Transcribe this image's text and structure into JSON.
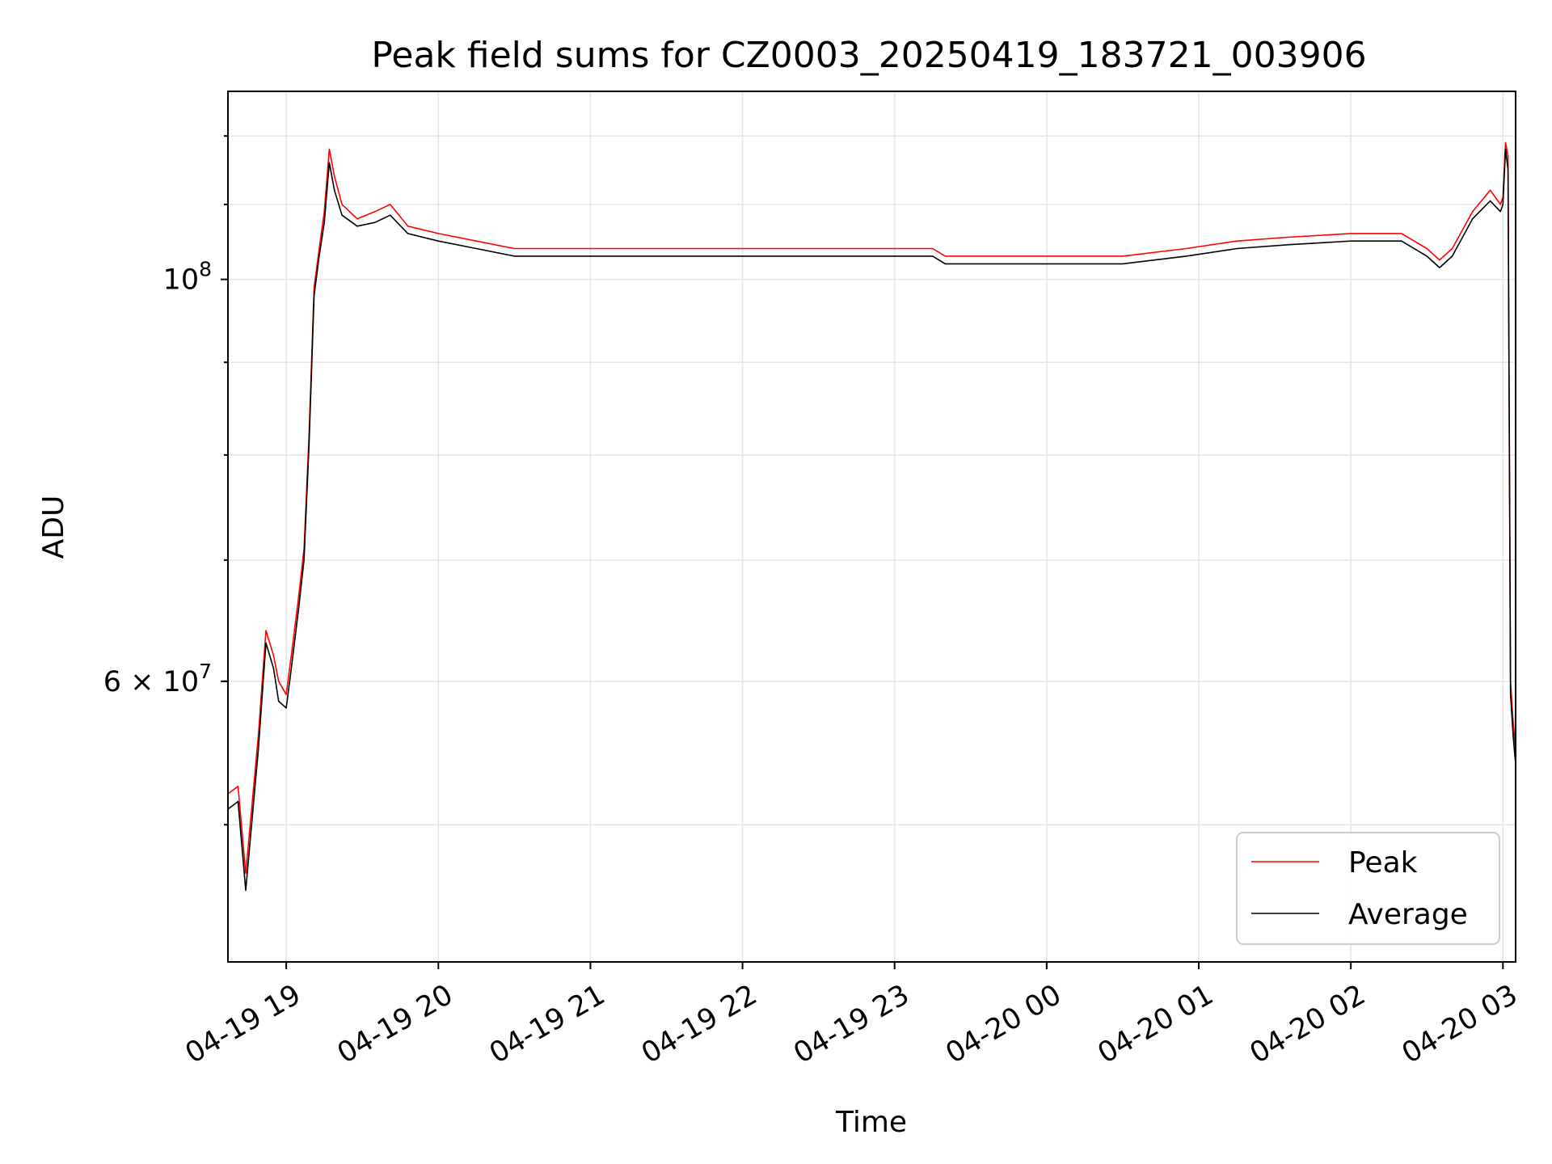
{
  "chart_data": {
    "type": "line",
    "title": "Peak field sums for CZ0003_20250419_183721_003906",
    "xlabel": "Time",
    "ylabel": "ADU",
    "y_scale": "log",
    "y_tick_labels": [
      {
        "value": 100000000,
        "label": "10",
        "exp": "8"
      },
      {
        "value": 60000000,
        "label": "6 × 10",
        "exp": "7"
      }
    ],
    "x_ticks": [
      {
        "t": "2025-04-19 19:00",
        "label": "04-19 19"
      },
      {
        "t": "2025-04-19 20:00",
        "label": "04-19 20"
      },
      {
        "t": "2025-04-19 21:00",
        "label": "04-19 21"
      },
      {
        "t": "2025-04-19 22:00",
        "label": "04-19 22"
      },
      {
        "t": "2025-04-19 23:00",
        "label": "04-19 23"
      },
      {
        "t": "2025-04-20 00:00",
        "label": "04-20 00"
      },
      {
        "t": "2025-04-20 01:00",
        "label": "04-20 01"
      },
      {
        "t": "2025-04-20 02:00",
        "label": "04-20 02"
      },
      {
        "t": "2025-04-20 03:00",
        "label": "04-20 03"
      }
    ],
    "xlim": [
      "2025-04-19 18:37",
      "2025-04-20 03:05"
    ],
    "ylim": [
      42000000,
      127000000
    ],
    "grid": true,
    "legend_position": "bottom-right",
    "series": [
      {
        "name": "Peak",
        "color": "#ff0000",
        "points": [
          [
            "2025-04-19 18:37",
            52000000
          ],
          [
            "2025-04-19 18:41",
            52500000
          ],
          [
            "2025-04-19 18:44",
            47000000
          ],
          [
            "2025-04-19 18:49",
            56000000
          ],
          [
            "2025-04-19 18:52",
            64000000
          ],
          [
            "2025-04-19 18:55",
            62000000
          ],
          [
            "2025-04-19 18:57",
            60000000
          ],
          [
            "2025-04-19 19:00",
            59000000
          ],
          [
            "2025-04-19 19:02",
            62000000
          ],
          [
            "2025-04-19 19:05",
            67000000
          ],
          [
            "2025-04-19 19:07",
            71000000
          ],
          [
            "2025-04-19 19:09",
            82000000
          ],
          [
            "2025-04-19 19:11",
            99000000
          ],
          [
            "2025-04-19 19:13",
            104000000
          ],
          [
            "2025-04-19 19:15",
            109000000
          ],
          [
            "2025-04-19 19:17",
            118000000
          ],
          [
            "2025-04-19 19:19",
            114000000
          ],
          [
            "2025-04-19 19:22",
            110000000
          ],
          [
            "2025-04-19 19:28",
            108000000
          ],
          [
            "2025-04-19 19:35",
            109000000
          ],
          [
            "2025-04-19 19:41",
            110000000
          ],
          [
            "2025-04-19 19:48",
            107000000
          ],
          [
            "2025-04-19 20:00",
            106000000
          ],
          [
            "2025-04-19 20:15",
            105000000
          ],
          [
            "2025-04-19 20:30",
            104000000
          ],
          [
            "2025-04-19 21:00",
            104000000
          ],
          [
            "2025-04-19 21:30",
            104000000
          ],
          [
            "2025-04-19 22:00",
            104000000
          ],
          [
            "2025-04-19 22:30",
            104000000
          ],
          [
            "2025-04-19 23:00",
            104000000
          ],
          [
            "2025-04-19 23:15",
            104000000
          ],
          [
            "2025-04-19 23:20",
            103000000
          ],
          [
            "2025-04-19 23:40",
            103000000
          ],
          [
            "2025-04-20 00:00",
            103000000
          ],
          [
            "2025-04-20 00:30",
            103000000
          ],
          [
            "2025-04-20 00:55",
            104000000
          ],
          [
            "2025-04-20 01:15",
            105000000
          ],
          [
            "2025-04-20 01:35",
            105500000
          ],
          [
            "2025-04-20 02:00",
            106000000
          ],
          [
            "2025-04-20 02:20",
            106000000
          ],
          [
            "2025-04-20 02:30",
            104000000
          ],
          [
            "2025-04-20 02:35",
            102500000
          ],
          [
            "2025-04-20 02:40",
            104000000
          ],
          [
            "2025-04-20 02:48",
            109000000
          ],
          [
            "2025-04-20 02:55",
            112000000
          ],
          [
            "2025-04-20 02:59",
            110000000
          ],
          [
            "2025-04-20 03:00",
            111000000
          ],
          [
            "2025-04-20 03:01",
            119000000
          ],
          [
            "2025-04-20 03:02",
            117000000
          ],
          [
            "2025-04-20 03:03",
            60000000
          ],
          [
            "2025-04-20 03:04",
            57000000
          ],
          [
            "2025-04-20 03:05",
            55000000
          ]
        ]
      },
      {
        "name": "Average",
        "color": "#000000",
        "points": [
          [
            "2025-04-19 18:37",
            51000000
          ],
          [
            "2025-04-19 18:41",
            51500000
          ],
          [
            "2025-04-19 18:44",
            46000000
          ],
          [
            "2025-04-19 18:49",
            55000000
          ],
          [
            "2025-04-19 18:52",
            63000000
          ],
          [
            "2025-04-19 18:55",
            61000000
          ],
          [
            "2025-04-19 18:57",
            58500000
          ],
          [
            "2025-04-19 19:00",
            58000000
          ],
          [
            "2025-04-19 19:02",
            61000000
          ],
          [
            "2025-04-19 19:05",
            66000000
          ],
          [
            "2025-04-19 19:07",
            70000000
          ],
          [
            "2025-04-19 19:09",
            81000000
          ],
          [
            "2025-04-19 19:11",
            98000000
          ],
          [
            "2025-04-19 19:13",
            103000000
          ],
          [
            "2025-04-19 19:15",
            107500000
          ],
          [
            "2025-04-19 19:17",
            116000000
          ],
          [
            "2025-04-19 19:19",
            112000000
          ],
          [
            "2025-04-19 19:22",
            108500000
          ],
          [
            "2025-04-19 19:28",
            107000000
          ],
          [
            "2025-04-19 19:35",
            107500000
          ],
          [
            "2025-04-19 19:41",
            108500000
          ],
          [
            "2025-04-19 19:48",
            106000000
          ],
          [
            "2025-04-19 20:00",
            105000000
          ],
          [
            "2025-04-19 20:15",
            104000000
          ],
          [
            "2025-04-19 20:30",
            103000000
          ],
          [
            "2025-04-19 21:00",
            103000000
          ],
          [
            "2025-04-19 21:30",
            103000000
          ],
          [
            "2025-04-19 22:00",
            103000000
          ],
          [
            "2025-04-19 22:30",
            103000000
          ],
          [
            "2025-04-19 23:00",
            103000000
          ],
          [
            "2025-04-19 23:15",
            103000000
          ],
          [
            "2025-04-19 23:20",
            102000000
          ],
          [
            "2025-04-19 23:40",
            102000000
          ],
          [
            "2025-04-20 00:00",
            102000000
          ],
          [
            "2025-04-20 00:30",
            102000000
          ],
          [
            "2025-04-20 00:55",
            103000000
          ],
          [
            "2025-04-20 01:15",
            104000000
          ],
          [
            "2025-04-20 01:35",
            104500000
          ],
          [
            "2025-04-20 02:00",
            105000000
          ],
          [
            "2025-04-20 02:20",
            105000000
          ],
          [
            "2025-04-20 02:30",
            103000000
          ],
          [
            "2025-04-20 02:35",
            101500000
          ],
          [
            "2025-04-20 02:40",
            103000000
          ],
          [
            "2025-04-20 02:48",
            108000000
          ],
          [
            "2025-04-20 02:55",
            110500000
          ],
          [
            "2025-04-20 02:59",
            109000000
          ],
          [
            "2025-04-20 03:00",
            110000000
          ],
          [
            "2025-04-20 03:01",
            118000000
          ],
          [
            "2025-04-20 03:02",
            115000000
          ],
          [
            "2025-04-20 03:03",
            59000000
          ],
          [
            "2025-04-20 03:04",
            56000000
          ],
          [
            "2025-04-20 03:05",
            54000000
          ]
        ]
      }
    ]
  }
}
